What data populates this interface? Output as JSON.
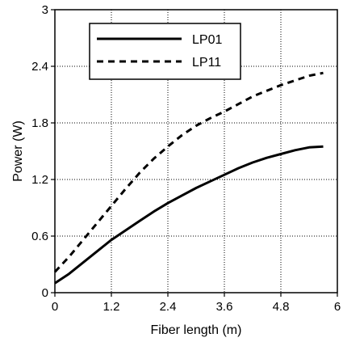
{
  "chart_data": {
    "type": "line",
    "title": "",
    "xlabel": "Fiber length (m)",
    "ylabel": "Power (W)",
    "xlim": [
      0,
      6
    ],
    "ylim": [
      0,
      3
    ],
    "x_ticks": [
      "0",
      "1.2",
      "2.4",
      "3.6",
      "4.8",
      "6"
    ],
    "y_ticks": [
      "0",
      "0.6",
      "1.2",
      "1.8",
      "2.4",
      "3"
    ],
    "grid": true,
    "legend_position": "top-center",
    "series": [
      {
        "name": "LP01",
        "style": "solid",
        "color": "#000000",
        "points": [
          [
            0,
            0.1
          ],
          [
            0.3,
            0.2
          ],
          [
            0.6,
            0.32
          ],
          [
            0.9,
            0.44
          ],
          [
            1.2,
            0.56
          ],
          [
            1.5,
            0.66
          ],
          [
            1.8,
            0.76
          ],
          [
            2.1,
            0.86
          ],
          [
            2.4,
            0.95
          ],
          [
            2.7,
            1.03
          ],
          [
            3.0,
            1.11
          ],
          [
            3.3,
            1.18
          ],
          [
            3.6,
            1.25
          ],
          [
            3.9,
            1.32
          ],
          [
            4.2,
            1.38
          ],
          [
            4.5,
            1.43
          ],
          [
            4.8,
            1.47
          ],
          [
            5.1,
            1.51
          ],
          [
            5.4,
            1.54
          ],
          [
            5.7,
            1.55
          ]
        ]
      },
      {
        "name": "LP11",
        "style": "dashed",
        "color": "#000000",
        "points": [
          [
            0,
            0.22
          ],
          [
            0.3,
            0.38
          ],
          [
            0.6,
            0.56
          ],
          [
            0.9,
            0.74
          ],
          [
            1.2,
            0.92
          ],
          [
            1.5,
            1.1
          ],
          [
            1.8,
            1.27
          ],
          [
            2.1,
            1.42
          ],
          [
            2.4,
            1.55
          ],
          [
            2.7,
            1.67
          ],
          [
            3.0,
            1.77
          ],
          [
            3.3,
            1.85
          ],
          [
            3.6,
            1.92
          ],
          [
            3.9,
            2.0
          ],
          [
            4.2,
            2.08
          ],
          [
            4.5,
            2.14
          ],
          [
            4.8,
            2.2
          ],
          [
            5.1,
            2.25
          ],
          [
            5.4,
            2.3
          ],
          [
            5.7,
            2.33
          ]
        ]
      }
    ]
  }
}
